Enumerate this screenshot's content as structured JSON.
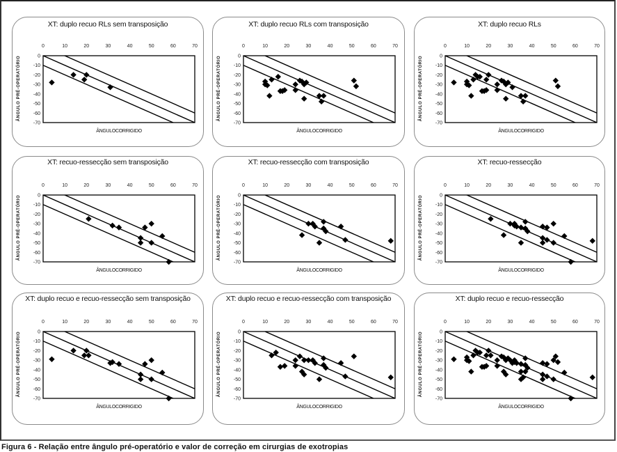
{
  "caption": "Figura 6 - Relação entre ângulo pré-operatório e valor de correção em cirurgias de exotropias",
  "colors": {
    "marker": "#000000",
    "line": "#000000",
    "frame": "#222222",
    "card_border": "#8a8a8a"
  },
  "chart_data": [
    {
      "type": "scatter",
      "title": "XT: duplo recuo RLs sem transposição",
      "xlabel": "ÂNGULOCORRIGIDO",
      "ylabel": "ÂNGULO PRÉ-OPERATÓRIO",
      "xlim": [
        0,
        70
      ],
      "ylim": [
        -70,
        0
      ],
      "xticks": [
        "0",
        "10",
        "20",
        "30",
        "40",
        "50",
        "60",
        "70"
      ],
      "yticks": [
        "0",
        "-10",
        "-20",
        "-30",
        "-40",
        "-50",
        "-60",
        "-70"
      ],
      "reference_lines": [
        {
          "slope": -1,
          "intercept": 10
        },
        {
          "slope": -1,
          "intercept": 0
        },
        {
          "slope": -1,
          "intercept": -10
        }
      ],
      "points": [
        [
          4,
          -28
        ],
        [
          14,
          -20
        ],
        [
          19,
          -25
        ],
        [
          20,
          -20
        ],
        [
          31,
          -33
        ]
      ]
    },
    {
      "type": "scatter",
      "title": "XT: duplo recuo RLs com transposição",
      "xlabel": "ÂNGULOCORRIGIDO",
      "ylabel": "ÂNGULO PRÉ-OPERATÓRIO",
      "xlim": [
        0,
        70
      ],
      "ylim": [
        -70,
        0
      ],
      "xticks": [
        "0",
        "10",
        "20",
        "30",
        "40",
        "50",
        "60",
        "70"
      ],
      "yticks": [
        "0",
        "-10",
        "-20",
        "-30",
        "-40",
        "-50",
        "-60",
        "-70"
      ],
      "reference_lines": [
        {
          "slope": -1,
          "intercept": 10
        },
        {
          "slope": -1,
          "intercept": 0
        },
        {
          "slope": -1,
          "intercept": -10
        }
      ],
      "points": [
        [
          10,
          -30
        ],
        [
          10,
          -27
        ],
        [
          11,
          -31
        ],
        [
          12,
          -42
        ],
        [
          13,
          -25
        ],
        [
          16,
          -22
        ],
        [
          17,
          -37
        ],
        [
          18,
          -37
        ],
        [
          19,
          -36
        ],
        [
          24,
          -30
        ],
        [
          24,
          -36
        ],
        [
          26,
          -26
        ],
        [
          27,
          -27
        ],
        [
          28,
          -30
        ],
        [
          28,
          -45
        ],
        [
          29,
          -28
        ],
        [
          35,
          -42
        ],
        [
          36,
          -48
        ],
        [
          37,
          -42
        ],
        [
          51,
          -26
        ],
        [
          52,
          -32
        ]
      ]
    },
    {
      "type": "scatter",
      "title": "XT: duplo recuo RLs",
      "xlabel": "ÂNGULOCORRIGIDO",
      "ylabel": "ÂNGULO PRÉ-OPERATÓRIO",
      "xlim": [
        0,
        70
      ],
      "ylim": [
        -70,
        0
      ],
      "xticks": [
        "0",
        "10",
        "20",
        "30",
        "40",
        "50",
        "60",
        "70"
      ],
      "yticks": [
        "0",
        "-10",
        "-20",
        "-30",
        "-40",
        "-50",
        "-60",
        "-70"
      ],
      "reference_lines": [
        {
          "slope": -1,
          "intercept": 10
        },
        {
          "slope": -1,
          "intercept": 0
        },
        {
          "slope": -1,
          "intercept": -10
        }
      ],
      "points": [
        [
          4,
          -28
        ],
        [
          10,
          -30
        ],
        [
          10,
          -27
        ],
        [
          11,
          -31
        ],
        [
          12,
          -42
        ],
        [
          13,
          -25
        ],
        [
          14,
          -20
        ],
        [
          15,
          -22
        ],
        [
          16,
          -22
        ],
        [
          17,
          -37
        ],
        [
          18,
          -37
        ],
        [
          19,
          -36
        ],
        [
          19,
          -25
        ],
        [
          20,
          -20
        ],
        [
          24,
          -30
        ],
        [
          24,
          -36
        ],
        [
          26,
          -26
        ],
        [
          27,
          -27
        ],
        [
          28,
          -30
        ],
        [
          28,
          -45
        ],
        [
          29,
          -28
        ],
        [
          31,
          -33
        ],
        [
          35,
          -42
        ],
        [
          36,
          -48
        ],
        [
          37,
          -42
        ],
        [
          51,
          -26
        ],
        [
          52,
          -32
        ]
      ]
    },
    {
      "type": "scatter",
      "title": "XT: recuo-ressecção sem transposição",
      "xlabel": "ÂNGULOCORRIGIDO",
      "ylabel": "ÂNGULO PRÉ-OPERATÓRIO",
      "xlim": [
        0,
        70
      ],
      "ylim": [
        -70,
        0
      ],
      "xticks": [
        "0",
        "10",
        "20",
        "30",
        "40",
        "50",
        "60",
        "70"
      ],
      "yticks": [
        "0",
        "-10",
        "-20",
        "-30",
        "-40",
        "-50",
        "-60",
        "-70"
      ],
      "reference_lines": [
        {
          "slope": -1,
          "intercept": 10
        },
        {
          "slope": -1,
          "intercept": 0
        },
        {
          "slope": -1,
          "intercept": -10
        }
      ],
      "points": [
        [
          21,
          -25
        ],
        [
          32,
          -32
        ],
        [
          35,
          -34
        ],
        [
          45,
          -45
        ],
        [
          45,
          -50
        ],
        [
          47,
          -34
        ],
        [
          50,
          -30
        ],
        [
          50,
          -50
        ],
        [
          55,
          -43
        ],
        [
          58,
          -70
        ]
      ]
    },
    {
      "type": "scatter",
      "title": "XT: recuo-ressecção com transposição",
      "xlabel": "ÂNGULOCORRIGIDO",
      "ylabel": "ÂNGULO PRÉ-OPERATÓRIO",
      "xlim": [
        0,
        70
      ],
      "ylim": [
        -70,
        0
      ],
      "xticks": [
        "0",
        "10",
        "20",
        "30",
        "40",
        "50",
        "60",
        "70"
      ],
      "yticks": [
        "0",
        "-10",
        "-20",
        "-30",
        "-40",
        "-50",
        "-60",
        "-70"
      ],
      "reference_lines": [
        {
          "slope": -1,
          "intercept": 10
        },
        {
          "slope": -1,
          "intercept": 0
        },
        {
          "slope": -1,
          "intercept": -10
        }
      ],
      "points": [
        [
          27,
          -42
        ],
        [
          30,
          -30
        ],
        [
          32,
          -30
        ],
        [
          33,
          -33
        ],
        [
          35,
          -50
        ],
        [
          37,
          -28
        ],
        [
          37,
          -35
        ],
        [
          38,
          -38
        ],
        [
          45,
          -33
        ],
        [
          47,
          -47
        ],
        [
          68,
          -48
        ]
      ]
    },
    {
      "type": "scatter",
      "title": "XT: recuo-ressecção",
      "xlabel": "ÂNGULOCORRIGIDO",
      "ylabel": "ÂNGULO PRÉ-OPERATÓRIO",
      "xlim": [
        0,
        70
      ],
      "ylim": [
        -70,
        0
      ],
      "xticks": [
        "0",
        "10",
        "20",
        "30",
        "40",
        "50",
        "60",
        "70"
      ],
      "yticks": [
        "0",
        "-10",
        "-20",
        "-30",
        "-40",
        "-50",
        "-60",
        "-70"
      ],
      "reference_lines": [
        {
          "slope": -1,
          "intercept": 10
        },
        {
          "slope": -1,
          "intercept": 0
        },
        {
          "slope": -1,
          "intercept": -10
        }
      ],
      "points": [
        [
          21,
          -25
        ],
        [
          27,
          -42
        ],
        [
          30,
          -30
        ],
        [
          32,
          -30
        ],
        [
          32,
          -32
        ],
        [
          33,
          -33
        ],
        [
          35,
          -34
        ],
        [
          35,
          -50
        ],
        [
          37,
          -28
        ],
        [
          37,
          -35
        ],
        [
          38,
          -38
        ],
        [
          45,
          -33
        ],
        [
          45,
          -45
        ],
        [
          45,
          -50
        ],
        [
          47,
          -34
        ],
        [
          47,
          -47
        ],
        [
          50,
          -30
        ],
        [
          50,
          -50
        ],
        [
          55,
          -43
        ],
        [
          58,
          -70
        ],
        [
          68,
          -48
        ]
      ]
    },
    {
      "type": "scatter",
      "title": "XT: duplo recuo e recuo-ressecção sem transposição",
      "xlabel": "ÂNGULOCORRIGIDO",
      "ylabel": "ÂNGULO PRÉ-OPERATÓRIO",
      "xlim": [
        0,
        70
      ],
      "ylim": [
        -70,
        0
      ],
      "xticks": [
        "0",
        "10",
        "20",
        "30",
        "40",
        "50",
        "60",
        "70"
      ],
      "yticks": [
        "0",
        "-10",
        "-20",
        "-30",
        "-40",
        "-50",
        "-60",
        "-70"
      ],
      "reference_lines": [
        {
          "slope": -1,
          "intercept": 10
        },
        {
          "slope": -1,
          "intercept": 0
        },
        {
          "slope": -1,
          "intercept": -10
        }
      ],
      "points": [
        [
          4,
          -29
        ],
        [
          14,
          -20
        ],
        [
          19,
          -25
        ],
        [
          20,
          -20
        ],
        [
          21,
          -25
        ],
        [
          31,
          -33
        ],
        [
          32,
          -32
        ],
        [
          35,
          -34
        ],
        [
          45,
          -45
        ],
        [
          45,
          -50
        ],
        [
          47,
          -34
        ],
        [
          50,
          -30
        ],
        [
          50,
          -50
        ],
        [
          55,
          -43
        ],
        [
          58,
          -70
        ]
      ]
    },
    {
      "type": "scatter",
      "title": "XT: duplo recuo e recuo-ressecção com transposição",
      "xlabel": "ÂNGULOCORRIGIDO",
      "ylabel": "ÂNGULO PRÉ-OPERATÓRIO",
      "xlim": [
        0,
        70
      ],
      "ylim": [
        -70,
        0
      ],
      "xticks": [
        "0",
        "10",
        "20",
        "30",
        "40",
        "50",
        "60",
        "70"
      ],
      "yticks": [
        "0",
        "-10",
        "-20",
        "-30",
        "-40",
        "-50",
        "-60",
        "-70"
      ],
      "reference_lines": [
        {
          "slope": -1,
          "intercept": 10
        },
        {
          "slope": -1,
          "intercept": 0
        },
        {
          "slope": -1,
          "intercept": -10
        }
      ],
      "points": [
        [
          13,
          -25
        ],
        [
          15,
          -22
        ],
        [
          17,
          -37
        ],
        [
          19,
          -36
        ],
        [
          24,
          -30
        ],
        [
          24,
          -36
        ],
        [
          26,
          -26
        ],
        [
          27,
          -42
        ],
        [
          28,
          -45
        ],
        [
          28,
          -30
        ],
        [
          30,
          -30
        ],
        [
          32,
          -30
        ],
        [
          33,
          -33
        ],
        [
          35,
          -50
        ],
        [
          37,
          -28
        ],
        [
          37,
          -35
        ],
        [
          38,
          -38
        ],
        [
          45,
          -33
        ],
        [
          47,
          -47
        ],
        [
          51,
          -26
        ],
        [
          68,
          -48
        ]
      ]
    },
    {
      "type": "scatter",
      "title": "XT: duplo recuo e recuo-ressecção",
      "xlabel": "ÂNGULOCORRIGIDO",
      "ylabel": "ÂNGULO PRÉ-OPERATÓRIO",
      "xlim": [
        0,
        70
      ],
      "ylim": [
        -70,
        0
      ],
      "xticks": [
        "0",
        "10",
        "20",
        "30",
        "40",
        "50",
        "60",
        "70"
      ],
      "yticks": [
        "0",
        "-10",
        "-20",
        "-30",
        "-40",
        "-50",
        "-60",
        "-70"
      ],
      "reference_lines": [
        {
          "slope": -1,
          "intercept": 10
        },
        {
          "slope": -1,
          "intercept": 0
        },
        {
          "slope": -1,
          "intercept": -10
        }
      ],
      "points": [
        [
          4,
          -29
        ],
        [
          10,
          -30
        ],
        [
          10,
          -27
        ],
        [
          11,
          -31
        ],
        [
          12,
          -42
        ],
        [
          13,
          -25
        ],
        [
          14,
          -20
        ],
        [
          15,
          -22
        ],
        [
          16,
          -22
        ],
        [
          17,
          -37
        ],
        [
          18,
          -37
        ],
        [
          19,
          -36
        ],
        [
          19,
          -25
        ],
        [
          20,
          -20
        ],
        [
          21,
          -25
        ],
        [
          24,
          -30
        ],
        [
          24,
          -36
        ],
        [
          26,
          -26
        ],
        [
          27,
          -27
        ],
        [
          27,
          -42
        ],
        [
          28,
          -45
        ],
        [
          28,
          -30
        ],
        [
          29,
          -28
        ],
        [
          30,
          -30
        ],
        [
          31,
          -33
        ],
        [
          32,
          -30
        ],
        [
          32,
          -32
        ],
        [
          33,
          -33
        ],
        [
          35,
          -42
        ],
        [
          35,
          -50
        ],
        [
          35,
          -34
        ],
        [
          36,
          -48
        ],
        [
          37,
          -42
        ],
        [
          37,
          -28
        ],
        [
          37,
          -35
        ],
        [
          38,
          -38
        ],
        [
          45,
          -33
        ],
        [
          45,
          -45
        ],
        [
          45,
          -50
        ],
        [
          47,
          -34
        ],
        [
          47,
          -47
        ],
        [
          50,
          -30
        ],
        [
          50,
          -50
        ],
        [
          51,
          -26
        ],
        [
          52,
          -32
        ],
        [
          55,
          -43
        ],
        [
          58,
          -70
        ],
        [
          68,
          -48
        ]
      ]
    }
  ]
}
